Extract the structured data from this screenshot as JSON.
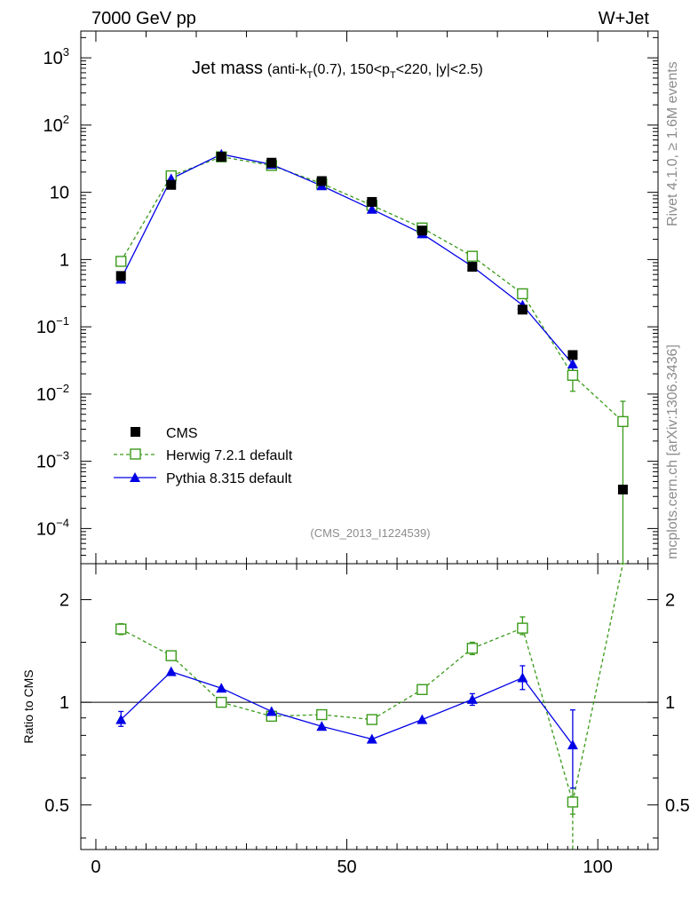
{
  "header": {
    "left": "7000 GeV pp",
    "right": "W+Jet"
  },
  "side": {
    "rivet": "Rivet 4.1.0, ≥ 1.6M events",
    "source": "mcplots.cern.ch [arXiv:1306.3436]"
  },
  "chart_data": {
    "type": "line",
    "title": {
      "main": "Jet mass",
      "p1": "(anti-k",
      "s1": "T",
      "p2": "(0.7), 150<p",
      "s2": "T",
      "p3": "<220, |y|<2.5)"
    },
    "analysis_id": "(CMS_2013_I1224539)",
    "x": [
      5,
      15,
      25,
      35,
      45,
      55,
      65,
      75,
      85,
      95,
      105
    ],
    "xlim": [
      -3,
      112
    ],
    "xticks": [
      0,
      50,
      100
    ],
    "xtick_labels": [
      "0",
      "50",
      "100"
    ],
    "ylim": [
      3e-05,
      2500
    ],
    "yscale": "log",
    "ytick_labels": [
      {
        "base": "10",
        "exp": "−4",
        "v": 0.0001
      },
      {
        "base": "10",
        "exp": "−3",
        "v": 0.001
      },
      {
        "base": "10",
        "exp": "−2",
        "v": 0.01
      },
      {
        "base": "10",
        "exp": "−1",
        "v": 0.1
      },
      {
        "base": "1",
        "exp": "",
        "v": 1
      },
      {
        "base": "10",
        "exp": "",
        "v": 10
      },
      {
        "base": "10",
        "exp": "2",
        "v": 100
      },
      {
        "base": "10",
        "exp": "3",
        "v": 1000
      }
    ],
    "series": [
      {
        "name": "CMS",
        "color": "#000000",
        "marker": "square-filled",
        "values": [
          0.57,
          12.9,
          33.7,
          27.6,
          14.7,
          7.2,
          2.7,
          0.78,
          0.18,
          0.038,
          0.00038
        ]
      },
      {
        "name": "Herwig 7.2.1 default",
        "color": "#3a9a1a",
        "marker": "square-open",
        "dashed": true,
        "values": [
          0.94,
          17.6,
          33.7,
          25.1,
          13.5,
          6.4,
          2.95,
          1.12,
          0.31,
          0.019,
          0.0039
        ]
      },
      {
        "name": "Pythia 8.315 default",
        "color": "#0000e6",
        "marker": "triangle",
        "values": [
          0.51,
          15.9,
          36.9,
          26.0,
          12.5,
          5.6,
          2.42,
          0.79,
          0.21,
          0.028,
          null
        ]
      }
    ],
    "ratio": {
      "ylabel": "Ratio to CMS",
      "ylim": [
        0.37,
        2.55
      ],
      "ytick_labels": [
        "0.5",
        "1",
        "2"
      ],
      "yticks": [
        0.5,
        1,
        2
      ],
      "herwig": [
        1.64,
        1.37,
        1.0,
        0.91,
        0.92,
        0.89,
        1.09,
        1.44,
        1.65,
        0.51,
        2.55
      ],
      "pythia": [
        0.89,
        1.23,
        1.1,
        0.94,
        0.85,
        0.78,
        0.89,
        1.02,
        1.18,
        0.75,
        null
      ]
    }
  }
}
